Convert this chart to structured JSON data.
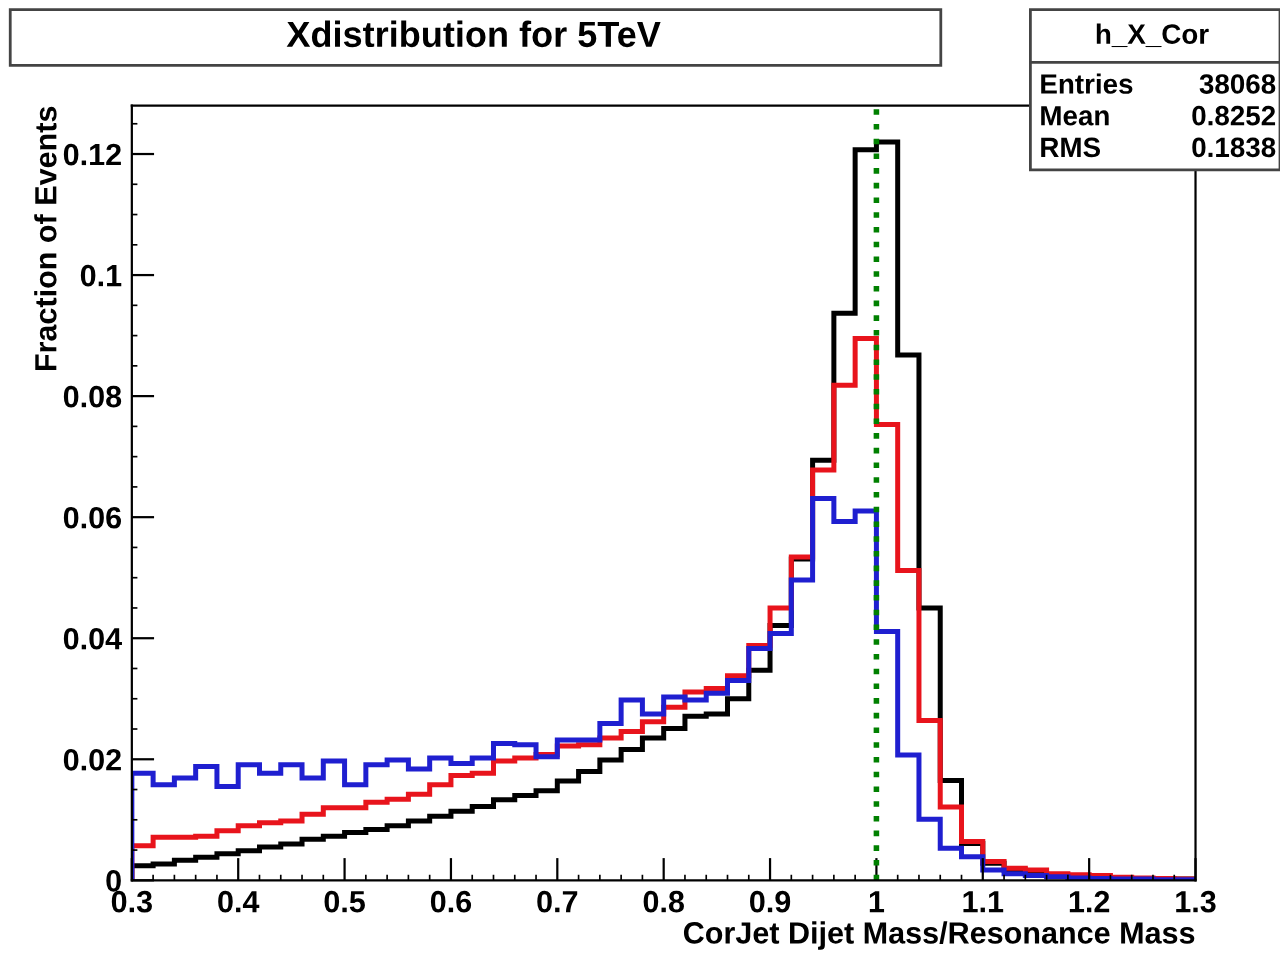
{
  "chart_data": {
    "type": "histogram",
    "title": "Xdistribution for 5TeV",
    "xlabel": "CorJet Dijet Mass/Resonance Mass",
    "ylabel": "Fraction of Events",
    "bins": [
      0.3,
      0.32,
      0.34,
      0.36,
      0.38,
      0.4,
      0.42,
      0.44,
      0.46,
      0.48,
      0.5,
      0.52,
      0.54,
      0.56,
      0.58,
      0.6,
      0.62,
      0.64,
      0.66,
      0.68,
      0.7,
      0.72,
      0.74,
      0.76,
      0.78,
      0.8,
      0.82,
      0.84,
      0.86,
      0.88,
      0.9,
      0.92,
      0.94,
      0.96,
      0.98,
      1.0,
      1.02,
      1.04,
      1.06,
      1.08,
      1.1,
      1.12,
      1.14,
      1.16,
      1.18,
      1.2,
      1.22,
      1.24,
      1.26,
      1.28,
      1.3
    ],
    "series": [
      {
        "color": "#000000",
        "values": [
          0.0024,
          0.0027,
          0.0033,
          0.0038,
          0.0044,
          0.0049,
          0.0055,
          0.006,
          0.0068,
          0.0073,
          0.0079,
          0.0084,
          0.009,
          0.0098,
          0.0106,
          0.0114,
          0.0122,
          0.0133,
          0.014,
          0.0148,
          0.0164,
          0.018,
          0.0199,
          0.0216,
          0.0235,
          0.0251,
          0.0271,
          0.0275,
          0.03,
          0.0347,
          0.0421,
          0.0531,
          0.0694,
          0.0937,
          0.1207,
          0.122,
          0.0868,
          0.045,
          0.0165,
          0.0061,
          0.0028,
          0.0017,
          0.0011,
          0.0008,
          0.0006,
          0.0004,
          0.0003,
          0.0003,
          0.0002,
          0.0002
        ]
      },
      {
        "color": "#e8141c",
        "values": [
          0.0057,
          0.0071,
          0.0071,
          0.0073,
          0.0082,
          0.009,
          0.0095,
          0.0098,
          0.0109,
          0.012,
          0.012,
          0.0129,
          0.0134,
          0.0142,
          0.0158,
          0.0173,
          0.0177,
          0.0197,
          0.0202,
          0.0208,
          0.0222,
          0.0224,
          0.0235,
          0.0246,
          0.0262,
          0.0286,
          0.0311,
          0.0317,
          0.0338,
          0.0388,
          0.045,
          0.0534,
          0.0678,
          0.0818,
          0.0895,
          0.0753,
          0.0512,
          0.0264,
          0.0121,
          0.0064,
          0.0031,
          0.002,
          0.0017,
          0.0011,
          0.0009,
          0.0008,
          0.0005,
          0.0004,
          0.0003,
          0.0002
        ]
      },
      {
        "color": "#1f1fd0",
        "values": [
          0.0177,
          0.0158,
          0.0169,
          0.0188,
          0.0155,
          0.0191,
          0.0177,
          0.0191,
          0.0169,
          0.0197,
          0.0158,
          0.0191,
          0.0199,
          0.0184,
          0.0202,
          0.0193,
          0.0202,
          0.0226,
          0.0224,
          0.0204,
          0.0232,
          0.0232,
          0.0259,
          0.0298,
          0.0275,
          0.0303,
          0.0298,
          0.0309,
          0.033,
          0.0383,
          0.0408,
          0.0496,
          0.0631,
          0.0593,
          0.061,
          0.0411,
          0.0207,
          0.0101,
          0.0053,
          0.0039,
          0.0017,
          0.0011,
          0.0008,
          0.0006,
          0.0004,
          0.0003,
          0.0002,
          0.0002,
          0.0001,
          0.0001
        ]
      }
    ],
    "xlim": [
      0.3,
      1.3
    ],
    "xticks": [
      0.3,
      0.4,
      0.5,
      0.6,
      0.7,
      0.8,
      0.9,
      1,
      1.1,
      1.2,
      1.3
    ],
    "ylim": [
      0,
      0.128
    ],
    "yticks": [
      0,
      0.02,
      0.04,
      0.06,
      0.08,
      0.1,
      0.12
    ],
    "ref_lines": [
      {
        "axis": "x",
        "value": 1.0,
        "color": "#008000",
        "line_style": "dotted"
      }
    ],
    "annotations": [
      "h_X_Cor",
      "Entries",
      "38068",
      "Mean",
      "0.8252",
      "RMS",
      "0.1838"
    ],
    "grid": false
  }
}
